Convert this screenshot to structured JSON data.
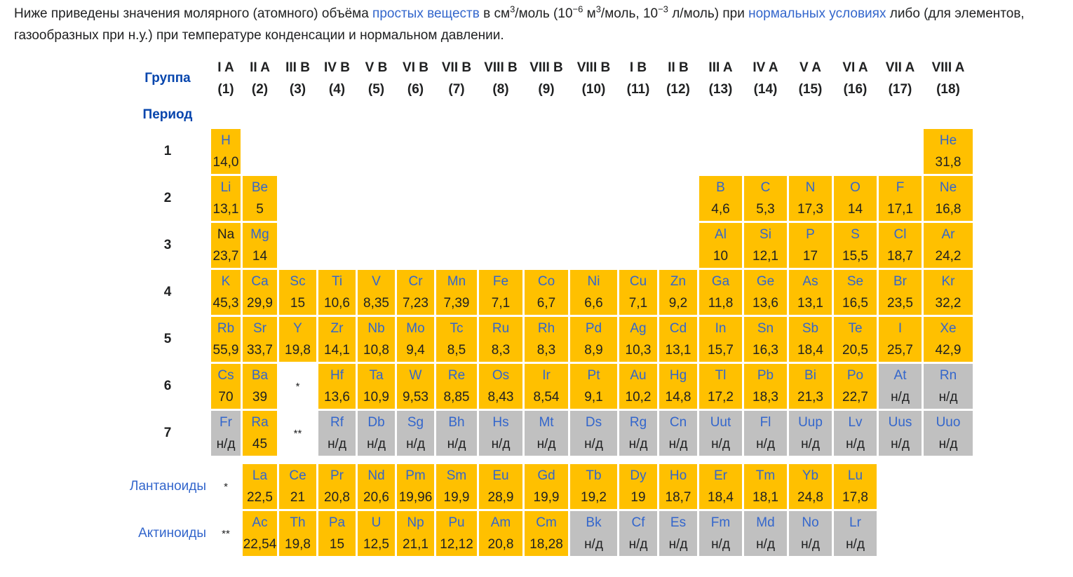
{
  "intro": {
    "t1": "Ниже приведены значения молярного (атомного) объёма ",
    "link1": "простых веществ",
    "t2": " в см",
    "sup1": "3",
    "t3": "/моль (10",
    "sup2": "−6",
    "t4": " м",
    "sup3": "3",
    "t5": "/моль, 10",
    "sup4": "−3",
    "t6": " л/моль) при ",
    "link2": "нормальных условиях",
    "t7": " либо (для элементов, газообразных при н.у.) при температуре конденсации и нормальном давлении."
  },
  "labels": {
    "group": "Группа",
    "period": "Период",
    "lanthanides": "Лантаноиды",
    "actinides": "Актиноиды",
    "lan_mark": "*",
    "act_mark": "**"
  },
  "colors": {
    "known": "#ffc000",
    "unknown": "#c0c0c0",
    "link": "#3366cc",
    "header_link": "#0645ad"
  },
  "groups": [
    {
      "name": "I A",
      "num": "(1)"
    },
    {
      "name": "II A",
      "num": "(2)"
    },
    {
      "name": "III B",
      "num": "(3)"
    },
    {
      "name": "IV B",
      "num": "(4)"
    },
    {
      "name": "V B",
      "num": "(5)"
    },
    {
      "name": "VI B",
      "num": "(6)"
    },
    {
      "name": "VII B",
      "num": "(7)"
    },
    {
      "name": "VIII B",
      "num": "(8)"
    },
    {
      "name": "VIII B",
      "num": "(9)"
    },
    {
      "name": "VIII B",
      "num": "(10)"
    },
    {
      "name": "I B",
      "num": "(11)"
    },
    {
      "name": "II B",
      "num": "(12)"
    },
    {
      "name": "III A",
      "num": "(13)"
    },
    {
      "name": "IV A",
      "num": "(14)"
    },
    {
      "name": "V A",
      "num": "(15)"
    },
    {
      "name": "VI A",
      "num": "(16)"
    },
    {
      "name": "VII A",
      "num": "(17)"
    },
    {
      "name": "VIII A",
      "num": "(18)"
    }
  ],
  "periods": [
    {
      "num": "1",
      "cells": [
        {
          "s": "H",
          "v": "14,0",
          "k": 1
        },
        {
          "e": 1
        },
        {
          "e": 1
        },
        {
          "e": 1
        },
        {
          "e": 1
        },
        {
          "e": 1
        },
        {
          "e": 1
        },
        {
          "e": 1
        },
        {
          "e": 1
        },
        {
          "e": 1
        },
        {
          "e": 1
        },
        {
          "e": 1
        },
        {
          "e": 1
        },
        {
          "e": 1
        },
        {
          "e": 1
        },
        {
          "e": 1
        },
        {
          "e": 1
        },
        {
          "s": "He",
          "v": "31,8",
          "k": 1
        }
      ]
    },
    {
      "num": "2",
      "cells": [
        {
          "s": "Li",
          "v": "13,1",
          "k": 1
        },
        {
          "s": "Be",
          "v": "5",
          "k": 1
        },
        {
          "e": 1
        },
        {
          "e": 1
        },
        {
          "e": 1
        },
        {
          "e": 1
        },
        {
          "e": 1
        },
        {
          "e": 1
        },
        {
          "e": 1
        },
        {
          "e": 1
        },
        {
          "e": 1
        },
        {
          "e": 1
        },
        {
          "s": "B",
          "v": "4,6",
          "k": 1
        },
        {
          "s": "C",
          "v": "5,3",
          "k": 1
        },
        {
          "s": "N",
          "v": "17,3",
          "k": 1
        },
        {
          "s": "O",
          "v": "14",
          "k": 1
        },
        {
          "s": "F",
          "v": "17,1",
          "k": 1
        },
        {
          "s": "Ne",
          "v": "16,8",
          "k": 1
        }
      ]
    },
    {
      "num": "3",
      "cells": [
        {
          "s": "Na",
          "v": "23,7",
          "k": 1,
          "b": 1
        },
        {
          "s": "Mg",
          "v": "14",
          "k": 1
        },
        {
          "e": 1
        },
        {
          "e": 1
        },
        {
          "e": 1
        },
        {
          "e": 1
        },
        {
          "e": 1
        },
        {
          "e": 1
        },
        {
          "e": 1
        },
        {
          "e": 1
        },
        {
          "e": 1
        },
        {
          "e": 1
        },
        {
          "s": "Al",
          "v": "10",
          "k": 1
        },
        {
          "s": "Si",
          "v": "12,1",
          "k": 1
        },
        {
          "s": "P",
          "v": "17",
          "k": 1
        },
        {
          "s": "S",
          "v": "15,5",
          "k": 1
        },
        {
          "s": "Cl",
          "v": "18,7",
          "k": 1
        },
        {
          "s": "Ar",
          "v": "24,2",
          "k": 1
        }
      ]
    },
    {
      "num": "4",
      "cells": [
        {
          "s": "K",
          "v": "45,3",
          "k": 1
        },
        {
          "s": "Ca",
          "v": "29,9",
          "k": 1
        },
        {
          "s": "Sc",
          "v": "15",
          "k": 1
        },
        {
          "s": "Ti",
          "v": "10,6",
          "k": 1
        },
        {
          "s": "V",
          "v": "8,35",
          "k": 1
        },
        {
          "s": "Cr",
          "v": "7,23",
          "k": 1
        },
        {
          "s": "Mn",
          "v": "7,39",
          "k": 1
        },
        {
          "s": "Fe",
          "v": "7,1",
          "k": 1
        },
        {
          "s": "Co",
          "v": "6,7",
          "k": 1
        },
        {
          "s": "Ni",
          "v": "6,6",
          "k": 1
        },
        {
          "s": "Cu",
          "v": "7,1",
          "k": 1
        },
        {
          "s": "Zn",
          "v": "9,2",
          "k": 1
        },
        {
          "s": "Ga",
          "v": "11,8",
          "k": 1
        },
        {
          "s": "Ge",
          "v": "13,6",
          "k": 1
        },
        {
          "s": "As",
          "v": "13,1",
          "k": 1
        },
        {
          "s": "Se",
          "v": "16,5",
          "k": 1
        },
        {
          "s": "Br",
          "v": "23,5",
          "k": 1
        },
        {
          "s": "Kr",
          "v": "32,2",
          "k": 1
        }
      ]
    },
    {
      "num": "5",
      "cells": [
        {
          "s": "Rb",
          "v": "55,9",
          "k": 1
        },
        {
          "s": "Sr",
          "v": "33,7",
          "k": 1
        },
        {
          "s": "Y",
          "v": "19,8",
          "k": 1
        },
        {
          "s": "Zr",
          "v": "14,1",
          "k": 1
        },
        {
          "s": "Nb",
          "v": "10,8",
          "k": 1
        },
        {
          "s": "Mo",
          "v": "9,4",
          "k": 1
        },
        {
          "s": "Tc",
          "v": "8,5",
          "k": 1
        },
        {
          "s": "Ru",
          "v": "8,3",
          "k": 1
        },
        {
          "s": "Rh",
          "v": "8,3",
          "k": 1
        },
        {
          "s": "Pd",
          "v": "8,9",
          "k": 1
        },
        {
          "s": "Ag",
          "v": "10,3",
          "k": 1
        },
        {
          "s": "Cd",
          "v": "13,1",
          "k": 1
        },
        {
          "s": "In",
          "v": "15,7",
          "k": 1
        },
        {
          "s": "Sn",
          "v": "16,3",
          "k": 1
        },
        {
          "s": "Sb",
          "v": "18,4",
          "k": 1
        },
        {
          "s": "Te",
          "v": "20,5",
          "k": 1
        },
        {
          "s": "I",
          "v": "25,7",
          "k": 1
        },
        {
          "s": "Xe",
          "v": "42,9",
          "k": 1
        }
      ]
    },
    {
      "num": "6",
      "cells": [
        {
          "s": "Cs",
          "v": "70",
          "k": 1
        },
        {
          "s": "Ba",
          "v": "39",
          "k": 1
        },
        {
          "m": "*"
        },
        {
          "s": "Hf",
          "v": "13,6",
          "k": 1
        },
        {
          "s": "Ta",
          "v": "10,9",
          "k": 1
        },
        {
          "s": "W",
          "v": "9,53",
          "k": 1
        },
        {
          "s": "Re",
          "v": "8,85",
          "k": 1
        },
        {
          "s": "Os",
          "v": "8,43",
          "k": 1
        },
        {
          "s": "Ir",
          "v": "8,54",
          "k": 1
        },
        {
          "s": "Pt",
          "v": "9,1",
          "k": 1
        },
        {
          "s": "Au",
          "v": "10,2",
          "k": 1
        },
        {
          "s": "Hg",
          "v": "14,8",
          "k": 1
        },
        {
          "s": "Tl",
          "v": "17,2",
          "k": 1
        },
        {
          "s": "Pb",
          "v": "18,3",
          "k": 1
        },
        {
          "s": "Bi",
          "v": "21,3",
          "k": 1
        },
        {
          "s": "Po",
          "v": "22,7",
          "k": 1
        },
        {
          "s": "At",
          "v": "н/д",
          "k": 0
        },
        {
          "s": "Rn",
          "v": "н/д",
          "k": 0
        }
      ]
    },
    {
      "num": "7",
      "cells": [
        {
          "s": "Fr",
          "v": "н/д",
          "k": 0
        },
        {
          "s": "Ra",
          "v": "45",
          "k": 1
        },
        {
          "m": "**"
        },
        {
          "s": "Rf",
          "v": "н/д",
          "k": 0
        },
        {
          "s": "Db",
          "v": "н/д",
          "k": 0
        },
        {
          "s": "Sg",
          "v": "н/д",
          "k": 0
        },
        {
          "s": "Bh",
          "v": "н/д",
          "k": 0
        },
        {
          "s": "Hs",
          "v": "н/д",
          "k": 0
        },
        {
          "s": "Mt",
          "v": "н/д",
          "k": 0
        },
        {
          "s": "Ds",
          "v": "н/д",
          "k": 0
        },
        {
          "s": "Rg",
          "v": "н/д",
          "k": 0
        },
        {
          "s": "Cn",
          "v": "н/д",
          "k": 0
        },
        {
          "s": "Uut",
          "v": "н/д",
          "k": 0
        },
        {
          "s": "Fl",
          "v": "н/д",
          "k": 0
        },
        {
          "s": "Uup",
          "v": "н/д",
          "k": 0
        },
        {
          "s": "Lv",
          "v": "н/д",
          "k": 0
        },
        {
          "s": "Uus",
          "v": "н/д",
          "k": 0
        },
        {
          "s": "Uuo",
          "v": "н/д",
          "k": 0
        }
      ]
    }
  ],
  "lanthanides": [
    {
      "s": "La",
      "v": "22,5",
      "k": 1
    },
    {
      "s": "Ce",
      "v": "21",
      "k": 1
    },
    {
      "s": "Pr",
      "v": "20,8",
      "k": 1
    },
    {
      "s": "Nd",
      "v": "20,6",
      "k": 1
    },
    {
      "s": "Pm",
      "v": "19,96",
      "k": 1
    },
    {
      "s": "Sm",
      "v": "19,9",
      "k": 1
    },
    {
      "s": "Eu",
      "v": "28,9",
      "k": 1
    },
    {
      "s": "Gd",
      "v": "19,9",
      "k": 1
    },
    {
      "s": "Tb",
      "v": "19,2",
      "k": 1
    },
    {
      "s": "Dy",
      "v": "19",
      "k": 1
    },
    {
      "s": "Ho",
      "v": "18,7",
      "k": 1
    },
    {
      "s": "Er",
      "v": "18,4",
      "k": 1
    },
    {
      "s": "Tm",
      "v": "18,1",
      "k": 1
    },
    {
      "s": "Yb",
      "v": "24,8",
      "k": 1
    },
    {
      "s": "Lu",
      "v": "17,8",
      "k": 1
    }
  ],
  "actinides": [
    {
      "s": "Ac",
      "v": "22,54",
      "k": 1
    },
    {
      "s": "Th",
      "v": "19,8",
      "k": 1
    },
    {
      "s": "Pa",
      "v": "15",
      "k": 1
    },
    {
      "s": "U",
      "v": "12,5",
      "k": 1
    },
    {
      "s": "Np",
      "v": "21,1",
      "k": 1
    },
    {
      "s": "Pu",
      "v": "12,12",
      "k": 1
    },
    {
      "s": "Am",
      "v": "20,8",
      "k": 1
    },
    {
      "s": "Cm",
      "v": "18,28",
      "k": 1
    },
    {
      "s": "Bk",
      "v": "н/д",
      "k": 0
    },
    {
      "s": "Cf",
      "v": "н/д",
      "k": 0
    },
    {
      "s": "Es",
      "v": "н/д",
      "k": 0
    },
    {
      "s": "Fm",
      "v": "н/д",
      "k": 0
    },
    {
      "s": "Md",
      "v": "н/д",
      "k": 0
    },
    {
      "s": "No",
      "v": "н/д",
      "k": 0
    },
    {
      "s": "Lr",
      "v": "н/д",
      "k": 0
    }
  ]
}
